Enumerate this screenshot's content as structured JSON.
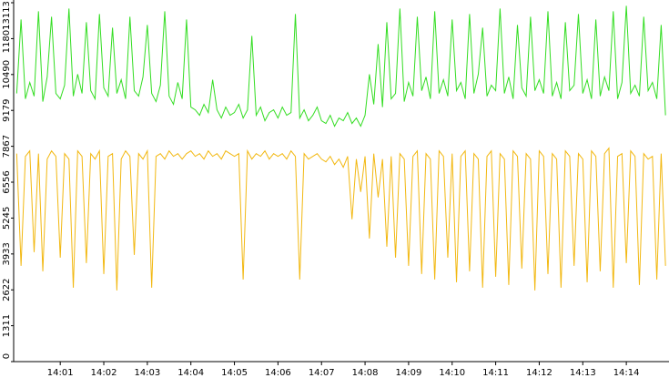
{
  "chart_data": {
    "type": "line",
    "x": [
      0,
      0.1,
      0.2,
      0.3,
      0.4,
      0.5,
      0.6,
      0.7,
      0.8,
      0.9,
      1,
      1.1,
      1.2,
      1.3,
      1.4,
      1.5,
      1.6,
      1.7,
      1.8,
      1.9,
      2,
      2.1,
      2.2,
      2.3,
      2.4,
      2.5,
      2.6,
      2.7,
      2.8,
      2.9,
      3,
      3.1,
      3.2,
      3.3,
      3.4,
      3.5,
      3.6,
      3.7,
      3.8,
      3.9,
      4,
      4.1,
      4.2,
      4.3,
      4.4,
      4.5,
      4.6,
      4.7,
      4.8,
      4.9,
      5,
      5.1,
      5.2,
      5.3,
      5.4,
      5.5,
      5.6,
      5.7,
      5.8,
      5.9,
      6,
      6.1,
      6.2,
      6.3,
      6.4,
      6.5,
      6.6,
      6.7,
      6.8,
      6.9,
      7,
      7.1,
      7.2,
      7.3,
      7.4,
      7.5,
      7.6,
      7.7,
      7.8,
      7.9,
      8,
      8.1,
      8.2,
      8.3,
      8.4,
      8.5,
      8.6,
      8.7,
      8.8,
      8.9,
      9,
      9.1,
      9.2,
      9.3,
      9.4,
      9.5,
      9.6,
      9.7,
      9.8,
      9.9,
      10,
      10.1,
      10.2,
      10.3,
      10.4,
      10.5,
      10.6,
      10.7,
      10.8,
      10.9,
      11,
      11.1,
      11.2,
      11.3,
      11.4,
      11.5,
      11.6,
      11.7,
      11.8,
      11.9,
      12,
      12.1,
      12.2,
      12.3,
      12.4,
      12.5,
      12.6,
      12.7,
      12.8,
      12.9,
      13,
      13.1,
      13.2,
      13.3,
      13.4,
      13.5,
      13.6,
      13.7,
      13.8,
      13.9,
      14,
      14.1,
      14.2,
      14.3,
      14.4,
      14.5,
      14.6,
      14.7,
      14.8,
      14.9
    ],
    "series": [
      {
        "color": "#33dd22",
        "values": [
          9800,
          12500,
          9600,
          10200,
          9700,
          12800,
          9500,
          10400,
          12600,
          9800,
          9600,
          10100,
          12900,
          9700,
          10500,
          9800,
          12400,
          9900,
          9600,
          12700,
          10000,
          9700,
          12200,
          9800,
          10300,
          9600,
          12600,
          9900,
          9700,
          10400,
          12300,
          9800,
          9500,
          10100,
          12800,
          9700,
          9400,
          10200,
          9600,
          12500,
          9300,
          9200,
          9000,
          9400,
          9100,
          10300,
          9200,
          8900,
          9300,
          9000,
          9100,
          9400,
          8900,
          9200,
          11900,
          9000,
          9300,
          8800,
          9100,
          9200,
          8900,
          9300,
          9000,
          9100,
          12700,
          8900,
          9200,
          8800,
          9000,
          9300,
          8800,
          8700,
          9000,
          8600,
          8900,
          8800,
          9100,
          8700,
          8900,
          8600,
          9000,
          10500,
          9400,
          11600,
          9300,
          12400,
          9600,
          9800,
          12900,
          9500,
          10200,
          9700,
          12600,
          9900,
          10400,
          9600,
          12800,
          9800,
          10300,
          9700,
          12500,
          9900,
          10200,
          9600,
          12700,
          9800,
          10500,
          12200,
          9700,
          10100,
          9900,
          12900,
          9800,
          10400,
          9600,
          12300,
          10000,
          9700,
          12600,
          9900,
          10300,
          9800,
          12800,
          9700,
          10200,
          9600,
          12400,
          9900,
          10100,
          12700,
          9800,
          10300,
          9600,
          12500,
          9700,
          10400,
          9900,
          12800,
          9600,
          10200,
          13000,
          9800,
          10100,
          9700,
          12600,
          9900,
          10200,
          9600,
          12300,
          9000
        ]
      },
      {
        "color": "#f2b811",
        "values": [
          7600,
          3500,
          7500,
          7700,
          4000,
          7600,
          3300,
          7400,
          7700,
          7500,
          3800,
          7600,
          7400,
          2700,
          7700,
          7500,
          3600,
          7600,
          7400,
          7700,
          3200,
          7500,
          7600,
          2600,
          7400,
          7700,
          7500,
          3900,
          7600,
          7400,
          7700,
          2700,
          7500,
          7600,
          7400,
          7700,
          7500,
          7600,
          7400,
          7600,
          7700,
          7500,
          7600,
          7400,
          7700,
          7500,
          7600,
          7400,
          7700,
          7600,
          7500,
          7600,
          3000,
          7700,
          7400,
          7600,
          7500,
          7700,
          7400,
          7600,
          7500,
          7600,
          7400,
          7700,
          7500,
          3000,
          7600,
          7400,
          7500,
          7600,
          7400,
          7300,
          7500,
          7200,
          7400,
          7100,
          7500,
          5200,
          7400,
          6200,
          7500,
          4500,
          7600,
          6000,
          7400,
          4200,
          7500,
          3800,
          7600,
          7400,
          3500,
          7500,
          7700,
          3200,
          7600,
          7400,
          3000,
          7700,
          7500,
          3800,
          7600,
          2900,
          7500,
          7700,
          3300,
          7600,
          7400,
          2700,
          7500,
          7700,
          3100,
          7600,
          7400,
          2800,
          7700,
          7500,
          3400,
          7600,
          7400,
          2600,
          7700,
          7500,
          3200,
          7600,
          7400,
          2700,
          7700,
          7500,
          3500,
          7600,
          7400,
          2900,
          7700,
          7500,
          3300,
          7600,
          7800,
          2700,
          7500,
          7600,
          3600,
          7700,
          7500,
          2800,
          7600,
          7400,
          7500,
          3000,
          7600,
          3500
        ]
      }
    ],
    "xlim": [
      -0.07,
      14.98
    ],
    "xticks": [
      {
        "value": 1,
        "label": "14:01"
      },
      {
        "value": 2,
        "label": "14:02"
      },
      {
        "value": 3,
        "label": "14:03"
      },
      {
        "value": 4,
        "label": "14:04"
      },
      {
        "value": 5,
        "label": "14:05"
      },
      {
        "value": 6,
        "label": "14:06"
      },
      {
        "value": 7,
        "label": "14:07"
      },
      {
        "value": 8,
        "label": "14:08"
      },
      {
        "value": 9,
        "label": "14:09"
      },
      {
        "value": 10,
        "label": "14:10"
      },
      {
        "value": 11,
        "label": "14:11"
      },
      {
        "value": 12,
        "label": "14:12"
      },
      {
        "value": 13,
        "label": "14:13"
      },
      {
        "value": 14,
        "label": "14:14"
      }
    ],
    "ylim": [
      0,
      13113
    ],
    "yticks": [
      0,
      1311,
      2622,
      3933,
      5245,
      6556,
      7867,
      9179,
      10490,
      11801,
      13113
    ]
  }
}
